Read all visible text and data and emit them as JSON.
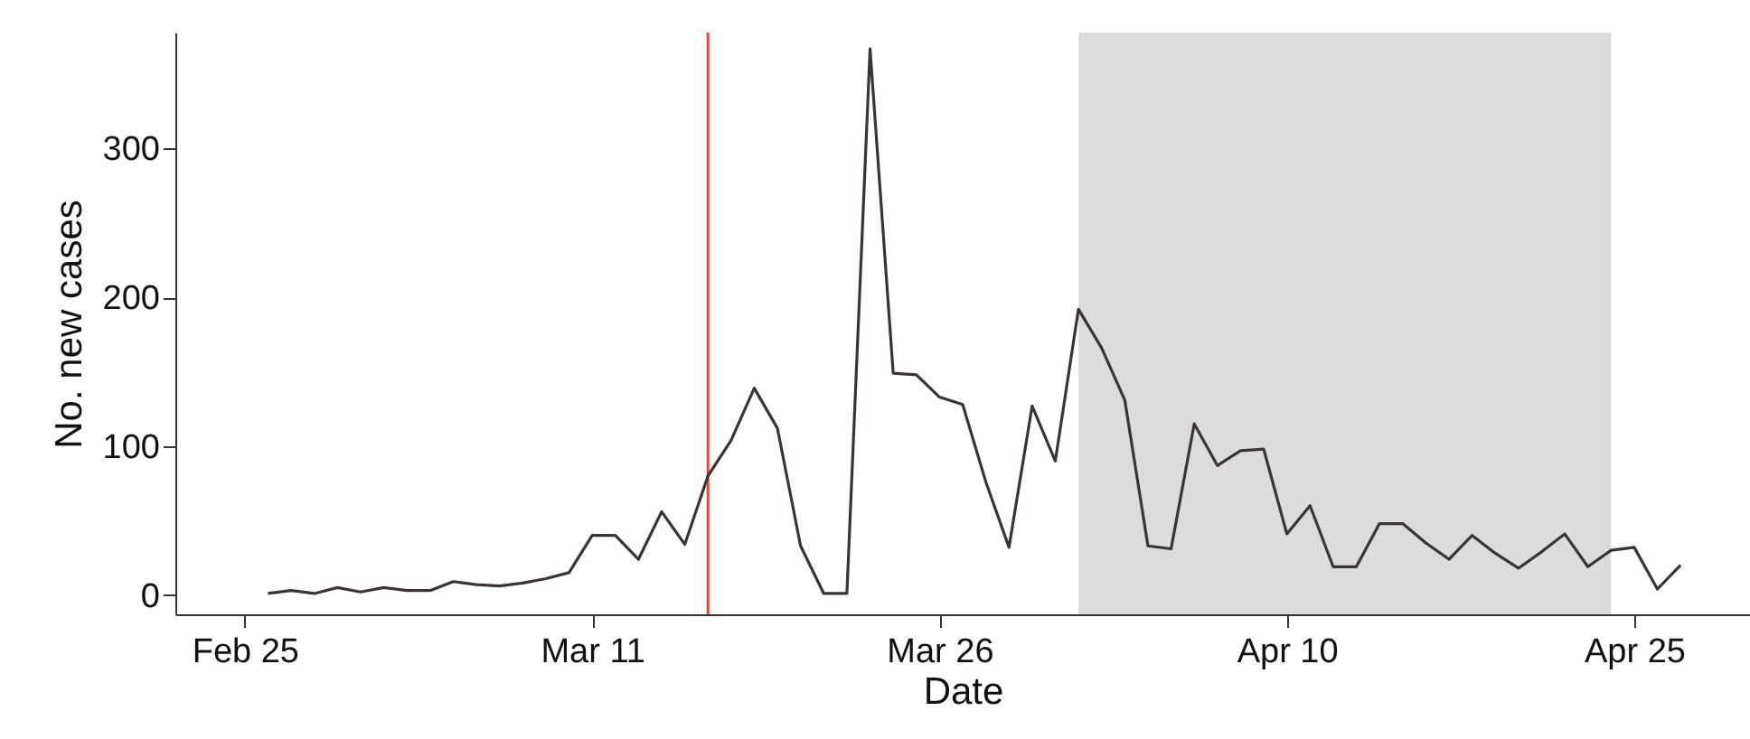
{
  "chart_data": {
    "type": "line",
    "xlabel": "Date",
    "ylabel": "No. new cases",
    "x": [
      "--02-26",
      "--02-27",
      "--02-28",
      "--02-29",
      "--03-01",
      "--03-02",
      "--03-03",
      "--03-04",
      "--03-05",
      "--03-06",
      "--03-07",
      "--03-08",
      "--03-09",
      "--03-10",
      "--03-11",
      "--03-12",
      "--03-13",
      "--03-14",
      "--03-15",
      "--03-16",
      "--03-17",
      "--03-18",
      "--03-19",
      "--03-20",
      "--03-21",
      "--03-22",
      "--03-23",
      "--03-24",
      "--03-25",
      "--03-26",
      "--03-27",
      "--03-28",
      "--03-29",
      "--03-30",
      "--03-31",
      "--04-01",
      "--04-02",
      "--04-03",
      "--04-04",
      "--04-05",
      "--04-06",
      "--04-07",
      "--04-08",
      "--04-09",
      "--04-10",
      "--04-11",
      "--04-12",
      "--04-13",
      "--04-14",
      "--04-15",
      "--04-16",
      "--04-17",
      "--04-18",
      "--04-19",
      "--04-20",
      "--04-21",
      "--04-22",
      "--04-23",
      "--04-24",
      "--04-25",
      "--04-26",
      "--04-27"
    ],
    "series": [
      {
        "color": "#3b3434",
        "values": [
          1,
          3,
          1,
          5,
          2,
          5,
          3,
          3,
          9,
          7,
          6,
          8,
          11,
          15,
          40,
          40,
          24,
          56,
          34,
          80,
          104,
          139,
          112,
          33,
          1,
          1,
          367,
          149,
          148,
          133,
          128,
          76,
          32,
          127,
          90,
          192,
          166,
          131,
          33,
          31,
          115,
          87,
          97,
          98,
          41,
          60,
          19,
          19,
          48,
          48,
          35,
          24,
          40,
          28,
          18,
          29,
          41,
          19,
          30,
          32,
          4,
          20
        ]
      }
    ],
    "xlim": [
      "--02-22",
      "--04-30"
    ],
    "xticks": [
      {
        "value": "--02-25",
        "label": "Feb 25"
      },
      {
        "value": "--03-11",
        "label": "Mar 11"
      },
      {
        "value": "--03-26",
        "label": "Mar 26"
      },
      {
        "value": "--04-10",
        "label": "Apr 10"
      },
      {
        "value": "--04-25",
        "label": "Apr 25"
      }
    ],
    "ylim": [
      -13,
      378
    ],
    "yticks": [
      0,
      100,
      200,
      300
    ],
    "ref_lines": [
      {
        "axis": "x",
        "value": "--03-16",
        "color": "#e8463c"
      }
    ],
    "bands": [
      {
        "axis": "x",
        "from": "--04-01",
        "to": "--04-24",
        "color": "#dcdcdc"
      }
    ]
  }
}
